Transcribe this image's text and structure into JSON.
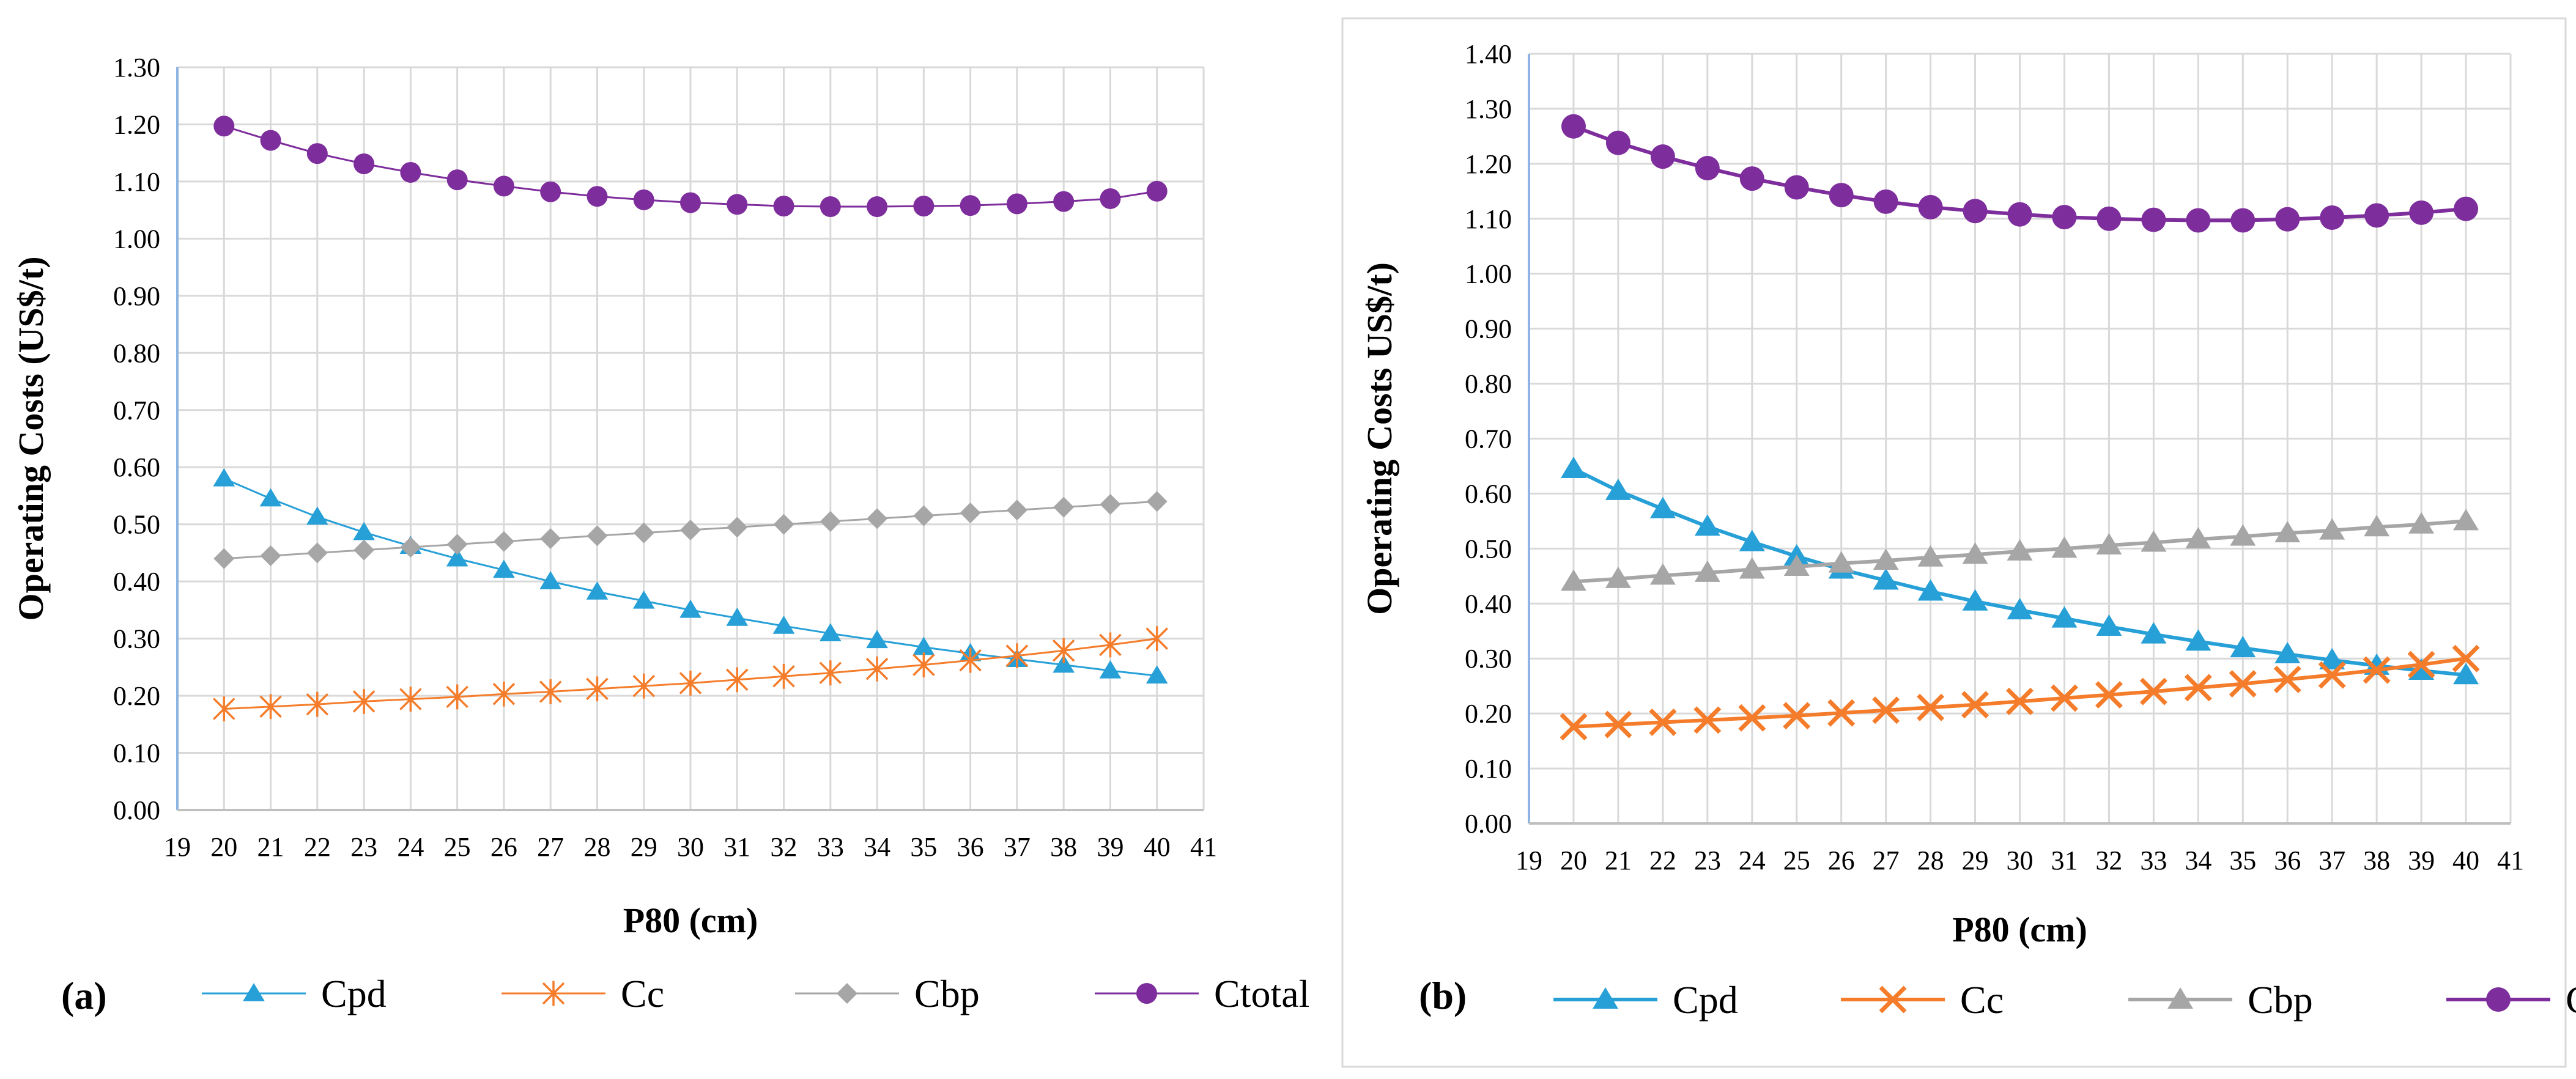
{
  "chart_data": [
    {
      "type": "line",
      "panel_label": "(a)",
      "xlabel": "P80 (cm)",
      "ylabel": "Operating Costs (US$/t)",
      "xlim": [
        19,
        41
      ],
      "ylim": [
        0,
        1.3
      ],
      "ystep": 0.1,
      "grid": true,
      "legend_position": "bottom",
      "x_ticks": [
        "19",
        "20",
        "21",
        "22",
        "23",
        "24",
        "25",
        "26",
        "27",
        "28",
        "29",
        "30",
        "31",
        "32",
        "33",
        "34",
        "35",
        "36",
        "37",
        "38",
        "39",
        "40",
        "41"
      ],
      "y_ticks": [
        "0.00",
        "0.10",
        "0.20",
        "0.30",
        "0.40",
        "0.50",
        "0.60",
        "0.70",
        "0.80",
        "0.90",
        "1.00",
        "1.10",
        "1.20",
        "1.30"
      ],
      "x": [
        20,
        21,
        22,
        23,
        24,
        25,
        26,
        27,
        28,
        29,
        30,
        31,
        32,
        33,
        34,
        35,
        36,
        37,
        38,
        39,
        40
      ],
      "series": [
        {
          "name": "Cpd",
          "color": "#27a0d7",
          "marker": "triangle",
          "values": [
            0.58,
            0.545,
            0.513,
            0.486,
            0.462,
            0.44,
            0.42,
            0.4,
            0.382,
            0.366,
            0.35,
            0.336,
            0.322,
            0.309,
            0.297,
            0.285,
            0.274,
            0.264,
            0.254,
            0.244,
            0.235
          ]
        },
        {
          "name": "Cc",
          "color": "#f47c2a",
          "marker": "star",
          "values": [
            0.177,
            0.181,
            0.185,
            0.19,
            0.194,
            0.198,
            0.203,
            0.207,
            0.212,
            0.217,
            0.222,
            0.228,
            0.234,
            0.24,
            0.247,
            0.254,
            0.262,
            0.27,
            0.279,
            0.289,
            0.3
          ]
        },
        {
          "name": "Cbp",
          "color": "#a6a6a6",
          "marker": "diamond",
          "values": [
            0.44,
            0.445,
            0.45,
            0.455,
            0.46,
            0.465,
            0.47,
            0.475,
            0.48,
            0.485,
            0.49,
            0.495,
            0.5,
            0.505,
            0.51,
            0.515,
            0.52,
            0.525,
            0.53,
            0.535,
            0.54
          ]
        },
        {
          "name": "Ctotal",
          "color": "#7e2d9c",
          "marker": "circle",
          "values": [
            1.197,
            1.172,
            1.149,
            1.131,
            1.116,
            1.103,
            1.092,
            1.082,
            1.074,
            1.068,
            1.063,
            1.06,
            1.057,
            1.056,
            1.056,
            1.057,
            1.058,
            1.061,
            1.065,
            1.07,
            1.083
          ]
        }
      ]
    },
    {
      "type": "line",
      "panel_label": "(b)",
      "xlabel": "P80 (cm)",
      "ylabel": "Operating Costs US$/t)",
      "xlim": [
        19,
        41
      ],
      "ylim": [
        0,
        1.4
      ],
      "ystep": 0.1,
      "grid": true,
      "legend_position": "bottom",
      "x_ticks": [
        "19",
        "20",
        "21",
        "22",
        "23",
        "24",
        "25",
        "26",
        "27",
        "28",
        "29",
        "30",
        "31",
        "32",
        "33",
        "34",
        "35",
        "36",
        "37",
        "38",
        "39",
        "40",
        "41"
      ],
      "y_ticks": [
        "0.00",
        "0.10",
        "0.20",
        "0.30",
        "0.40",
        "0.50",
        "0.60",
        "0.70",
        "0.80",
        "0.90",
        "1.00",
        "1.10",
        "1.20",
        "1.30",
        "1.40"
      ],
      "x": [
        20,
        21,
        22,
        23,
        24,
        25,
        26,
        27,
        28,
        29,
        30,
        31,
        32,
        33,
        34,
        35,
        36,
        37,
        38,
        39,
        40
      ],
      "series": [
        {
          "name": "Cpd",
          "color": "#27a0d7",
          "marker": "triangle",
          "values": [
            0.645,
            0.605,
            0.572,
            0.54,
            0.512,
            0.486,
            0.462,
            0.442,
            0.422,
            0.404,
            0.388,
            0.373,
            0.358,
            0.344,
            0.331,
            0.319,
            0.308,
            0.297,
            0.287,
            0.278,
            0.27
          ]
        },
        {
          "name": "Cc",
          "color": "#f47c2a",
          "marker": "x",
          "values": [
            0.176,
            0.18,
            0.184,
            0.188,
            0.192,
            0.196,
            0.201,
            0.206,
            0.211,
            0.216,
            0.222,
            0.228,
            0.234,
            0.24,
            0.247,
            0.254,
            0.262,
            0.27,
            0.279,
            0.289,
            0.3
          ]
        },
        {
          "name": "Cbp",
          "color": "#a6a6a6",
          "marker": "triangle",
          "values": [
            0.44,
            0.445,
            0.451,
            0.456,
            0.462,
            0.467,
            0.473,
            0.478,
            0.484,
            0.489,
            0.495,
            0.5,
            0.506,
            0.511,
            0.517,
            0.522,
            0.528,
            0.533,
            0.539,
            0.544,
            0.55
          ]
        },
        {
          "name": "Ctotal",
          "color": "#7e2d9c",
          "marker": "circle",
          "values": [
            1.268,
            1.238,
            1.213,
            1.192,
            1.173,
            1.157,
            1.143,
            1.131,
            1.121,
            1.114,
            1.108,
            1.103,
            1.1,
            1.098,
            1.097,
            1.097,
            1.099,
            1.102,
            1.106,
            1.111,
            1.118
          ]
        }
      ]
    }
  ]
}
